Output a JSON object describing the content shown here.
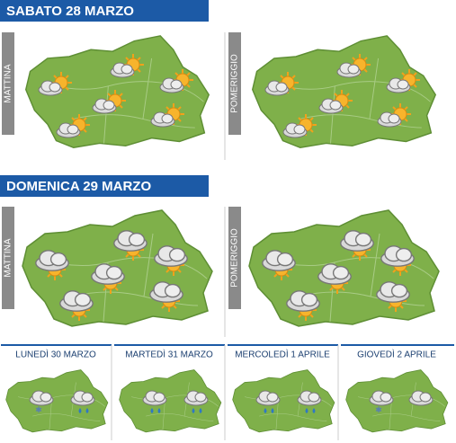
{
  "day1": {
    "title": "SABATO 28 MARZO",
    "panels": [
      "MATTINA",
      "POMERIGGIO"
    ]
  },
  "day2": {
    "title": "DOMENICA 29 MARZO",
    "panels": [
      "MATTINA",
      "POMERIGGIO"
    ]
  },
  "outlook": [
    "LUNEDÌ 30 MARZO",
    "MARTEDÌ 31 MARZO",
    "MERCOLEDÌ 1 APRILE",
    "GIOVEDÌ 2 APRILE"
  ]
}
